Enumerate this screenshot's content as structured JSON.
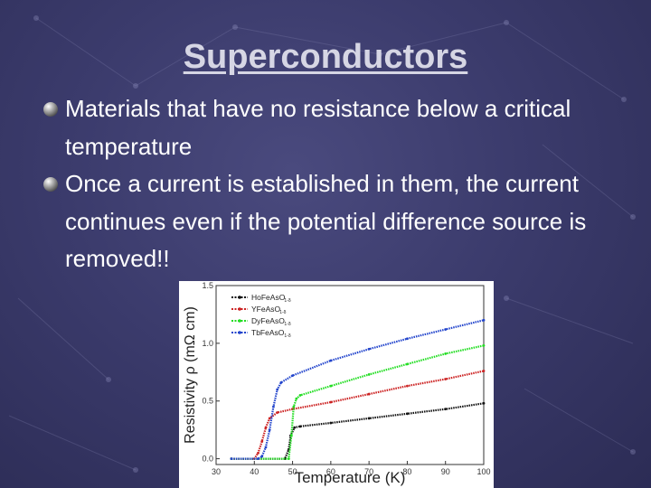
{
  "slide": {
    "title": "Superconductors",
    "bullets": [
      {
        "text": "Materials that have no resistance below a critical temperature",
        "icon": "sphere-bullet-icon"
      },
      {
        "text": "Once a current is established in them, the current continues even if the potential difference source is removed!!",
        "icon": "sphere-bullet-icon"
      }
    ]
  },
  "chart_data": {
    "type": "line",
    "xlabel": "Temperature (K)",
    "ylabel": "Resistivity ρ (mΩ cm)",
    "xlim": [
      30,
      100
    ],
    "ylim": [
      -0.05,
      1.5
    ],
    "xticks": [
      "30",
      "40",
      "50",
      "60",
      "70",
      "80",
      "90",
      "100"
    ],
    "yticks": [
      "0.0",
      "0.5",
      "1.0",
      "1.5"
    ],
    "legend_position": "top-left",
    "series": [
      {
        "name": "HoFeAsO",
        "subscript": "1-δ",
        "color": "#111111",
        "x": [
          34,
          48,
          49,
          49.5,
          50.5,
          52,
          60,
          70,
          80,
          90,
          100
        ],
        "y": [
          0,
          0,
          0.08,
          0.2,
          0.27,
          0.28,
          0.31,
          0.35,
          0.39,
          0.43,
          0.48
        ]
      },
      {
        "name": "YFeAsO",
        "subscript": "1-δ",
        "color": "#cc2222",
        "x": [
          34,
          40,
          41,
          42,
          43,
          44,
          46,
          50,
          60,
          70,
          80,
          90,
          100
        ],
        "y": [
          0,
          0,
          0.05,
          0.15,
          0.27,
          0.35,
          0.4,
          0.43,
          0.49,
          0.56,
          0.63,
          0.69,
          0.76
        ]
      },
      {
        "name": "DyFeAsO",
        "subscript": "1-δ",
        "color": "#22dd22",
        "x": [
          34,
          49,
          49.7,
          50.3,
          51,
          52,
          60,
          70,
          80,
          90,
          100
        ],
        "y": [
          0,
          0,
          0.2,
          0.45,
          0.52,
          0.55,
          0.63,
          0.73,
          0.82,
          0.91,
          0.98
        ]
      },
      {
        "name": "TbFeAsO",
        "subscript": "1-δ",
        "color": "#2244cc",
        "x": [
          34,
          41,
          42,
          43,
          44,
          45,
          46,
          47,
          50,
          60,
          70,
          80,
          90,
          100
        ],
        "y": [
          0,
          0,
          0.02,
          0.1,
          0.25,
          0.45,
          0.6,
          0.66,
          0.72,
          0.85,
          0.95,
          1.04,
          1.12,
          1.2
        ]
      }
    ]
  }
}
